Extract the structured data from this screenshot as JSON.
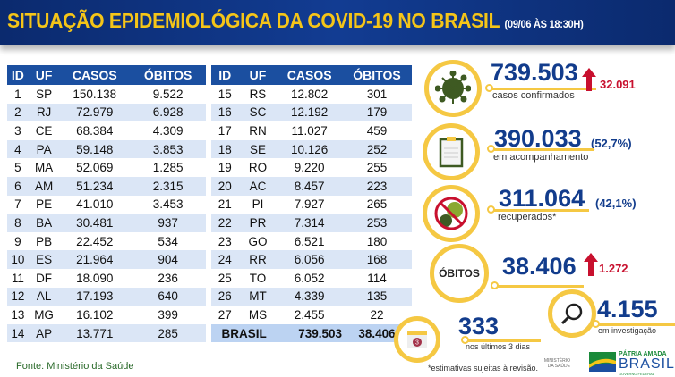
{
  "header": {
    "title": "SITUAÇÃO EPIDEMIOLÓGICA DA COVID-19 NO BRASIL",
    "datetime": "(09/06 ÀS 18:30H)"
  },
  "table": {
    "columns": [
      "ID",
      "UF",
      "CASOS",
      "ÓBITOS"
    ],
    "left": [
      [
        "1",
        "SP",
        "150.138",
        "9.522"
      ],
      [
        "2",
        "RJ",
        "72.979",
        "6.928"
      ],
      [
        "3",
        "CE",
        "68.384",
        "4.309"
      ],
      [
        "4",
        "PA",
        "59.148",
        "3.853"
      ],
      [
        "5",
        "MA",
        "52.069",
        "1.285"
      ],
      [
        "6",
        "AM",
        "51.234",
        "2.315"
      ],
      [
        "7",
        "PE",
        "41.010",
        "3.453"
      ],
      [
        "8",
        "BA",
        "30.481",
        "937"
      ],
      [
        "9",
        "PB",
        "22.452",
        "534"
      ],
      [
        "10",
        "ES",
        "21.964",
        "904"
      ],
      [
        "11",
        "DF",
        "18.090",
        "236"
      ],
      [
        "12",
        "AL",
        "17.193",
        "640"
      ],
      [
        "13",
        "MG",
        "16.102",
        "399"
      ],
      [
        "14",
        "AP",
        "13.771",
        "285"
      ]
    ],
    "right": [
      [
        "15",
        "RS",
        "12.802",
        "301"
      ],
      [
        "16",
        "SC",
        "12.192",
        "179"
      ],
      [
        "17",
        "RN",
        "11.027",
        "459"
      ],
      [
        "18",
        "SE",
        "10.126",
        "252"
      ],
      [
        "19",
        "RO",
        "9.220",
        "255"
      ],
      [
        "20",
        "AC",
        "8.457",
        "223"
      ],
      [
        "21",
        "PI",
        "7.927",
        "265"
      ],
      [
        "22",
        "PR",
        "7.314",
        "253"
      ],
      [
        "23",
        "GO",
        "6.521",
        "180"
      ],
      [
        "24",
        "RR",
        "6.056",
        "168"
      ],
      [
        "25",
        "TO",
        "6.052",
        "114"
      ],
      [
        "26",
        "MT",
        "4.339",
        "135"
      ],
      [
        "27",
        "MS",
        "2.455",
        "22"
      ]
    ],
    "total": {
      "label": "BRASIL",
      "cases": "739.503",
      "deaths": "38.406"
    }
  },
  "stats": {
    "confirmed": {
      "value": "739.503",
      "label": "casos confirmados",
      "increase": "32.091",
      "icon": "virus-icon"
    },
    "monitoring": {
      "value": "390.033",
      "pct": "(52,7%)",
      "label": "em acompanhamento",
      "icon": "clipboard-icon"
    },
    "recovered": {
      "value": "311.064",
      "pct": "(42,1%)",
      "label": "recuperados*",
      "icon": "no-virus-icon"
    },
    "deaths": {
      "badge": "ÓBITOS",
      "value": "38.406",
      "increase": "1.272"
    },
    "last3": {
      "value": "333",
      "label": "nos últimos 3 dias",
      "calendar_num": "3",
      "icon": "calendar-icon"
    },
    "investigation": {
      "value": "4.155",
      "label": "em investigação",
      "icon": "magnifier-icon"
    }
  },
  "footer": {
    "source": "Fonte: Ministério da Saúde",
    "note": "*estimativas sujeitas à revisão.",
    "ministry": "MINISTÉRIO DA SAÚDE",
    "brand_top": "PÁTRIA AMADA",
    "brand": "BRASIL",
    "brand_sub": "GOVERNO FEDERAL"
  },
  "colors": {
    "navy": "#123c8c",
    "yellow": "#f5c843",
    "red": "#c8102e"
  }
}
